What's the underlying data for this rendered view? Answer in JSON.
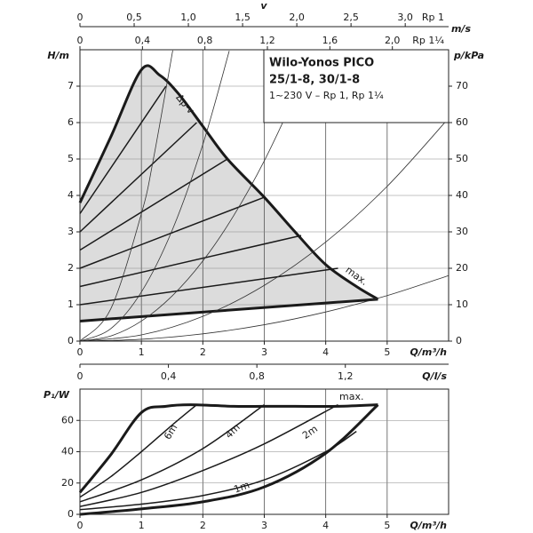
{
  "chart_data": [
    {
      "type": "line",
      "title": [
        "Wilo-Yonos PICO",
        "25/1-8, 30/1-8",
        "1~230 V – Rp 1, Rp 1¼"
      ],
      "xlabel": "Q/m³/h",
      "ylabel": "H/m",
      "y2label": "p/kPa",
      "annotations": [
        "Δp-v"
      ],
      "xlim": [
        0,
        6
      ],
      "ylim": [
        0,
        8
      ],
      "y2lim": [
        0,
        80
      ],
      "xticks": [
        0,
        1,
        2,
        3,
        4,
        5
      ],
      "yticks": [
        0,
        1,
        2,
        3,
        4,
        5,
        6,
        7
      ],
      "y2ticks": [
        0,
        10,
        20,
        30,
        40,
        50,
        60,
        70
      ],
      "grid": true,
      "fill": "#dcdcdc",
      "top_axis_name": "v",
      "top_axis_unit": "m/s",
      "top_axes": [
        {
          "label": "Rp 1",
          "xlim": [
            0,
            3.4
          ],
          "xticks": [
            0,
            {
              "value": 0.5,
              "label": "0,5"
            },
            {
              "value": 1.0,
              "label": "1,0"
            },
            {
              "value": 1.5,
              "label": "1,5"
            },
            {
              "value": 2.0,
              "label": "2,0"
            },
            {
              "value": 2.5,
              "label": "2,5"
            },
            {
              "value": 3.0,
              "label": "3,0"
            }
          ]
        },
        {
          "label": "Rp 1¼",
          "xlim": [
            0,
            2.36
          ],
          "xticks": [
            0,
            {
              "value": 0.4,
              "label": "0,4"
            },
            {
              "value": 0.8,
              "label": "0,8"
            },
            {
              "value": 1.2,
              "label": "1,2"
            },
            {
              "value": 1.6,
              "label": "1,6"
            },
            {
              "value": 2.0,
              "label": "2,0"
            }
          ]
        }
      ],
      "series": [
        {
          "name": "max.",
          "color": "#1a1a1a",
          "linewidth": 3,
          "x": [
            0,
            0.5,
            1,
            1.3,
            1.6,
            2,
            2.4,
            3,
            3.5,
            4,
            4.5,
            4.85
          ],
          "values": [
            3.8,
            5.6,
            7.45,
            7.3,
            6.8,
            5.9,
            5.0,
            3.95,
            3.0,
            2.1,
            1.5,
            1.15
          ]
        },
        {
          "color": "#1a1a1a",
          "linewidth": 3,
          "x": [
            0,
            4.85
          ],
          "values": [
            0.55,
            1.15
          ]
        },
        {
          "color": "#1a1a1a",
          "linewidth": 1.5,
          "x": [
            0,
            4.2
          ],
          "values": [
            1.0,
            2.0
          ]
        },
        {
          "color": "#1a1a1a",
          "linewidth": 1.5,
          "x": [
            0,
            3.6
          ],
          "values": [
            1.5,
            2.9
          ]
        },
        {
          "color": "#1a1a1a",
          "linewidth": 1.5,
          "x": [
            0,
            3.0
          ],
          "values": [
            2.0,
            3.95
          ]
        },
        {
          "color": "#1a1a1a",
          "linewidth": 1.5,
          "x": [
            0,
            2.4
          ],
          "values": [
            2.5,
            5.0
          ]
        },
        {
          "color": "#1a1a1a",
          "linewidth": 1.5,
          "x": [
            0,
            1.9
          ],
          "values": [
            3.0,
            6.0
          ]
        },
        {
          "color": "#1a1a1a",
          "linewidth": 1.5,
          "x": [
            0,
            1.4
          ],
          "values": [
            3.5,
            7.0
          ]
        },
        {
          "color": "#333333",
          "linewidth": 0.8,
          "x": [
            0,
            1,
            2,
            3,
            4,
            5,
            6
          ],
          "values": [
            0,
            0.05,
            0.2,
            0.45,
            0.8,
            1.25,
            1.8
          ]
        },
        {
          "color": "#333333",
          "linewidth": 0.8,
          "x": [
            0,
            1,
            2,
            3,
            4,
            5,
            6
          ],
          "values": [
            0,
            0.17,
            0.68,
            1.53,
            2.72,
            4.25,
            6.12
          ]
        },
        {
          "color": "#333333",
          "linewidth": 0.8,
          "x": [
            0,
            0.5,
            1,
            1.5,
            2,
            2.5,
            3,
            3.5,
            3.81
          ],
          "values": [
            0,
            0.14,
            0.55,
            1.24,
            2.2,
            3.44,
            4.95,
            6.74,
            7.98
          ]
        },
        {
          "color": "#333333",
          "linewidth": 0.8,
          "x": [
            0,
            0.5,
            1,
            1.5,
            2,
            2.43
          ],
          "values": [
            0,
            0.34,
            1.35,
            3.04,
            5.4,
            7.97
          ]
        },
        {
          "color": "#333333",
          "linewidth": 0.8,
          "x": [
            0,
            0.5,
            1,
            1.2,
            1.51
          ],
          "values": [
            0,
            0.88,
            3.5,
            5.04,
            7.98
          ]
        }
      ]
    },
    {
      "type": "line",
      "xlabel": "Q/m³/h",
      "ylabel": "P₁/W",
      "xlim": [
        0,
        6
      ],
      "ylim": [
        0,
        80
      ],
      "xticks": [
        0,
        1,
        2,
        3,
        4,
        5
      ],
      "yticks": [
        0,
        20,
        40,
        60
      ],
      "grid": true,
      "top_axis": {
        "label": "Q/l/s",
        "xlim": [
          0,
          1.667
        ],
        "xticks": [
          0,
          {
            "value": 0.4,
            "label": "0,4"
          },
          {
            "value": 0.8,
            "label": "0,8"
          },
          {
            "value": 1.2,
            "label": "1,2"
          }
        ]
      },
      "series": [
        {
          "name": "max.",
          "color": "#1a1a1a",
          "linewidth": 3,
          "x": [
            0,
            0.5,
            1,
            1.4,
            1.8,
            2.5,
            3,
            3.5,
            4.2,
            4.85
          ],
          "values": [
            14,
            38,
            65,
            69,
            70,
            69,
            69,
            69,
            69,
            70
          ]
        },
        {
          "color": "#1a1a1a",
          "linewidth": 3,
          "x": [
            0,
            1,
            2,
            3,
            4,
            4.85
          ],
          "values": [
            0,
            3.5,
            8,
            17.5,
            39,
            70
          ]
        },
        {
          "name": "6m",
          "color": "#1a1a1a",
          "linewidth": 1.5,
          "x": [
            0,
            0.5,
            1,
            1.5,
            1.9
          ],
          "values": [
            11,
            24,
            40,
            57,
            70
          ]
        },
        {
          "name": "4m",
          "color": "#1a1a1a",
          "linewidth": 1.5,
          "x": [
            0,
            1,
            2,
            3
          ],
          "values": [
            8,
            22,
            42,
            70
          ]
        },
        {
          "name": "2m",
          "color": "#1a1a1a",
          "linewidth": 1.5,
          "x": [
            0,
            1,
            2,
            3,
            4.2
          ],
          "values": [
            5,
            14,
            28,
            45,
            70
          ]
        },
        {
          "name": "1m",
          "color": "#1a1a1a",
          "linewidth": 1.5,
          "x": [
            0,
            1,
            2,
            3,
            4,
            4.5
          ],
          "values": [
            3,
            6.5,
            12,
            22,
            40,
            53
          ]
        }
      ]
    }
  ]
}
